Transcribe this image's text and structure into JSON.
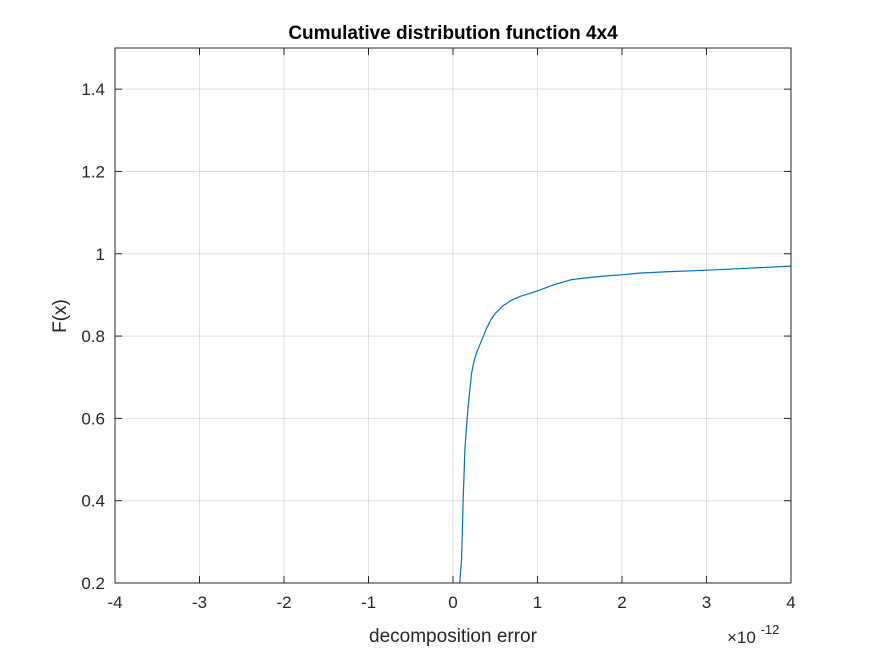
{
  "chart_data": {
    "type": "line",
    "title": "Cumulative distribution function 4x4",
    "xlabel": "decomposition error",
    "ylabel": "F(x)",
    "x_exponent_label": "×10",
    "x_exponent_power": "-12",
    "xlim": [
      -4,
      4
    ],
    "ylim": [
      0.2,
      1.5
    ],
    "x_ticks": [
      -4,
      -3,
      -2,
      -1,
      0,
      1,
      2,
      3,
      4
    ],
    "x_tick_labels": [
      "-4",
      "-3",
      "-2",
      "-1",
      "0",
      "1",
      "2",
      "3",
      "4"
    ],
    "y_ticks": [
      0.2,
      0.4,
      0.6,
      0.8,
      1.0,
      1.2,
      1.4
    ],
    "y_tick_labels": [
      "0.2",
      "0.4",
      "0.6",
      "0.8",
      "1",
      "1.2",
      "1.4"
    ],
    "grid": true,
    "line_color": "#0072bd",
    "series": [
      {
        "x": [
          0.08,
          0.09,
          0.1,
          0.11,
          0.12,
          0.13,
          0.14,
          0.16,
          0.18,
          0.2,
          0.22,
          0.25,
          0.28,
          0.32,
          0.36,
          0.4,
          0.45,
          0.5,
          0.55,
          0.6,
          0.7,
          0.8,
          0.9,
          1.0,
          1.2,
          1.4,
          1.6,
          1.8,
          2.0,
          2.2,
          2.5,
          3.0,
          3.5,
          4.0
        ],
        "y": [
          0.2,
          0.23,
          0.25,
          0.32,
          0.4,
          0.46,
          0.52,
          0.58,
          0.63,
          0.67,
          0.71,
          0.74,
          0.76,
          0.78,
          0.8,
          0.82,
          0.84,
          0.855,
          0.865,
          0.875,
          0.888,
          0.897,
          0.903,
          0.91,
          0.925,
          0.937,
          0.942,
          0.946,
          0.949,
          0.953,
          0.956,
          0.96,
          0.965,
          0.97
        ]
      }
    ]
  }
}
